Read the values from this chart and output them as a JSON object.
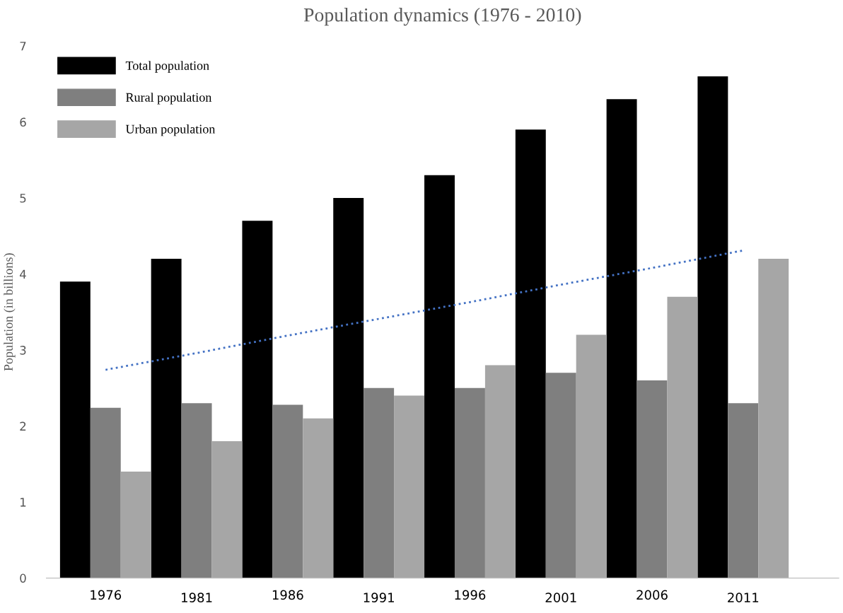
{
  "chart_data": {
    "type": "bar",
    "title": "Population dynamics (1976 - 2010)",
    "ylabel": "Population (in billions)",
    "categories": [
      "1976",
      "1981",
      "1986",
      "1991",
      "1996",
      "2001",
      "2006",
      "2011"
    ],
    "series": [
      {
        "name": "Total population",
        "color": "#000000",
        "values": [
          3.9,
          4.2,
          4.7,
          5.0,
          5.3,
          5.9,
          6.3,
          6.6
        ]
      },
      {
        "name": "Rural population",
        "color": "#7f7f7f",
        "values": [
          2.24,
          2.3,
          2.28,
          2.5,
          2.5,
          2.7,
          2.6,
          2.3
        ]
      },
      {
        "name": "Urban population",
        "color": "#a6a6a6",
        "values": [
          1.4,
          1.8,
          2.1,
          2.4,
          2.8,
          3.2,
          3.7,
          4.2
        ]
      },
      {
        "type": "line",
        "color": "#4472c4",
        "line_style": "dotted",
        "values": [
          2.74,
          2.96,
          3.19,
          3.41,
          3.63,
          3.86,
          4.08,
          4.31
        ]
      }
    ],
    "ylim": [
      0,
      7
    ],
    "yticks": [
      0,
      1,
      2,
      3,
      4,
      5,
      6,
      7
    ],
    "grid": false,
    "legend": "top left"
  }
}
